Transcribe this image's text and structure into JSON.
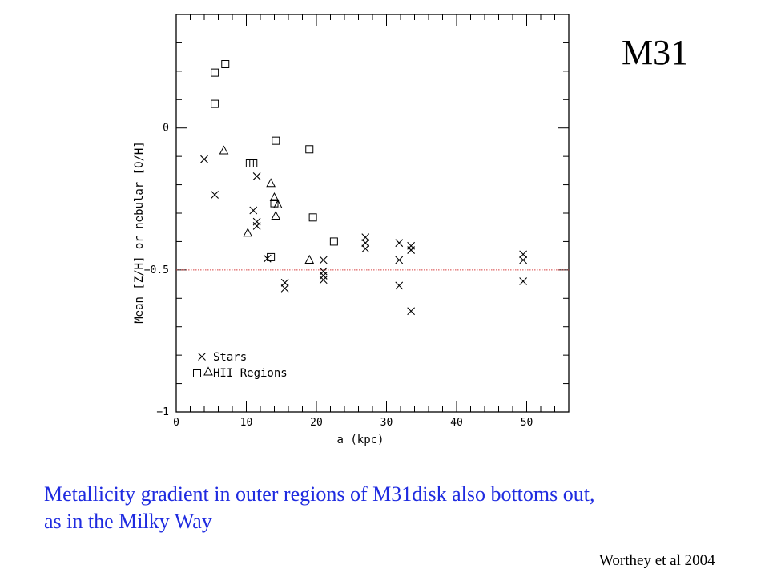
{
  "slide": {
    "title": "M31",
    "caption_lines": [
      "Metallicity gradient in outer regions of M31disk also  bottoms out,",
      "as in the Milky Way"
    ],
    "credit": "Worthey et al 2004"
  },
  "chart_data": {
    "type": "scatter",
    "xlabel": "a (kpc)",
    "ylabel": "Mean [Z/H] or nebular [O/H]",
    "xlim": [
      0,
      56
    ],
    "ylim": [
      -1,
      0.4
    ],
    "xticks": [
      0,
      10,
      20,
      30,
      40,
      50
    ],
    "yticks": [
      0,
      -0.5,
      -1
    ],
    "ytick_labels": [
      "0",
      "−0.5",
      "−1"
    ],
    "grid": false,
    "reference_line": {
      "y": -0.5,
      "color": "#d64040",
      "style": "dotted"
    },
    "legend": {
      "position": "bottom-left",
      "entries": [
        {
          "markers": [
            "x"
          ],
          "label": "Stars"
        },
        {
          "markers": [
            "square",
            "triangle"
          ],
          "label": "HII Regions"
        }
      ]
    },
    "series": [
      {
        "marker": "x",
        "points": [
          [
            4,
            -0.11
          ],
          [
            5.5,
            -0.235
          ],
          [
            11,
            -0.29
          ],
          [
            11.5,
            -0.17
          ],
          [
            11.5,
            -0.33
          ],
          [
            11.5,
            -0.345
          ],
          [
            13,
            -0.46
          ],
          [
            15.5,
            -0.545
          ],
          [
            15.5,
            -0.565
          ],
          [
            21,
            -0.465
          ],
          [
            21,
            -0.505
          ],
          [
            21,
            -0.52
          ],
          [
            21,
            -0.535
          ],
          [
            27,
            -0.385
          ],
          [
            27,
            -0.405
          ],
          [
            27,
            -0.425
          ],
          [
            31.8,
            -0.405
          ],
          [
            31.8,
            -0.465
          ],
          [
            31.8,
            -0.555
          ],
          [
            33.5,
            -0.415
          ],
          [
            33.5,
            -0.43
          ],
          [
            33.5,
            -0.645
          ],
          [
            49.5,
            -0.445
          ],
          [
            49.5,
            -0.465
          ],
          [
            49.5,
            -0.54
          ]
        ]
      },
      {
        "marker": "square",
        "points": [
          [
            5.5,
            0.195
          ],
          [
            7,
            0.225
          ],
          [
            5.5,
            0.085
          ],
          [
            10.5,
            -0.125
          ],
          [
            11,
            -0.125
          ],
          [
            14.2,
            -0.045
          ],
          [
            19,
            -0.075
          ],
          [
            14,
            -0.265
          ],
          [
            19.5,
            -0.315
          ],
          [
            13.5,
            -0.455
          ],
          [
            22.5,
            -0.4
          ]
        ]
      },
      {
        "marker": "triangle",
        "points": [
          [
            6.8,
            -0.08
          ],
          [
            13.5,
            -0.195
          ],
          [
            14,
            -0.245
          ],
          [
            14.5,
            -0.27
          ],
          [
            14.2,
            -0.31
          ],
          [
            10.2,
            -0.37
          ],
          [
            19,
            -0.465
          ]
        ]
      }
    ]
  }
}
